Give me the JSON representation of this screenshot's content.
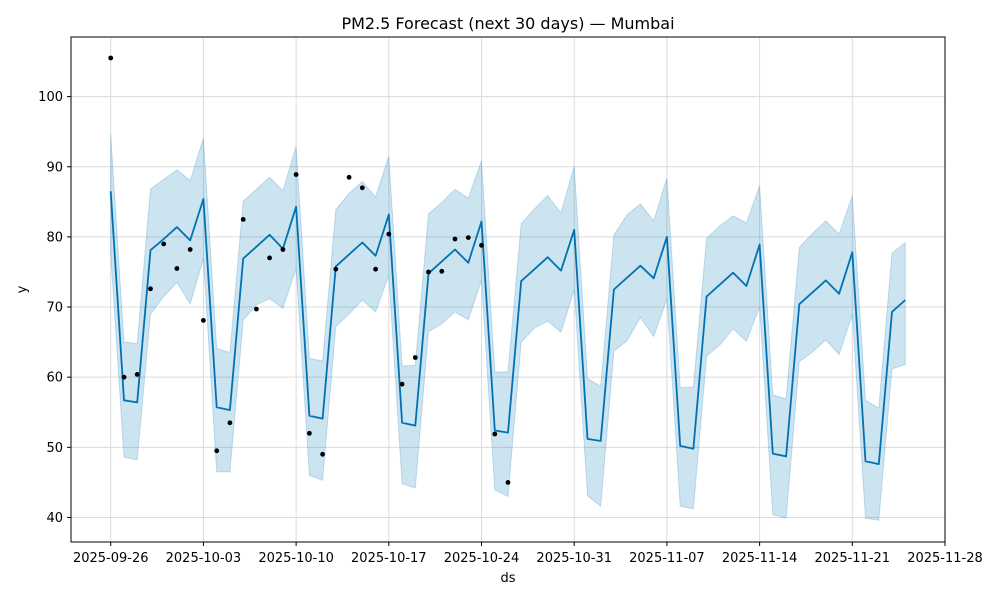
{
  "chart_data": {
    "type": "line",
    "title": "PM2.5 Forecast (next 30 days) — Mumbai",
    "xlabel": "ds",
    "ylabel": "y",
    "x_ticks": [
      "2025-09-26",
      "2025-10-03",
      "2025-10-10",
      "2025-10-17",
      "2025-10-24",
      "2025-10-31",
      "2025-11-07",
      "2025-11-14",
      "2025-11-21",
      "2025-11-28"
    ],
    "y_ticks": [
      40,
      50,
      60,
      70,
      80,
      90,
      100
    ],
    "xlim": [
      "2025-09-23",
      "2025-11-28"
    ],
    "ylim": [
      36.5,
      108.5
    ],
    "grid": true,
    "colors": {
      "forecast": "#0072B2",
      "band": "#0072B2",
      "observed": "#000000"
    },
    "observed": {
      "x": [
        "2025-09-26",
        "2025-09-27",
        "2025-09-28",
        "2025-09-29",
        "2025-09-30",
        "2025-10-01",
        "2025-10-02",
        "2025-10-03",
        "2025-10-04",
        "2025-10-05",
        "2025-10-06",
        "2025-10-07",
        "2025-10-08",
        "2025-10-09",
        "2025-10-10",
        "2025-10-11",
        "2025-10-12",
        "2025-10-13",
        "2025-10-14",
        "2025-10-15",
        "2025-10-16",
        "2025-10-17",
        "2025-10-18",
        "2025-10-19",
        "2025-10-20",
        "2025-10-21",
        "2025-10-22",
        "2025-10-23",
        "2025-10-24",
        "2025-10-25",
        "2025-10-26"
      ],
      "y": [
        105.5,
        60.0,
        60.4,
        72.6,
        79.0,
        75.5,
        78.2,
        68.1,
        49.5,
        53.5,
        82.5,
        69.7,
        77.0,
        78.2,
        88.9,
        52.0,
        49.0,
        75.4,
        88.5,
        87.0,
        75.4,
        80.4,
        59.0,
        62.8,
        75.0,
        75.1,
        79.7,
        79.9,
        78.8,
        51.9,
        45.0
      ]
    },
    "forecast": {
      "x": [
        "2025-09-26",
        "2025-09-27",
        "2025-09-28",
        "2025-09-29",
        "2025-09-30",
        "2025-10-01",
        "2025-10-02",
        "2025-10-03",
        "2025-10-04",
        "2025-10-05",
        "2025-10-06",
        "2025-10-07",
        "2025-10-08",
        "2025-10-09",
        "2025-10-10",
        "2025-10-11",
        "2025-10-12",
        "2025-10-13",
        "2025-10-14",
        "2025-10-15",
        "2025-10-16",
        "2025-10-17",
        "2025-10-18",
        "2025-10-19",
        "2025-10-20",
        "2025-10-21",
        "2025-10-22",
        "2025-10-23",
        "2025-10-24",
        "2025-10-25",
        "2025-10-26",
        "2025-10-27",
        "2025-10-28",
        "2025-10-29",
        "2025-10-30",
        "2025-10-31",
        "2025-11-01",
        "2025-11-02",
        "2025-11-03",
        "2025-11-04",
        "2025-11-05",
        "2025-11-06",
        "2025-11-07",
        "2025-11-08",
        "2025-11-09",
        "2025-11-10",
        "2025-11-11",
        "2025-11-12",
        "2025-11-13",
        "2025-11-14",
        "2025-11-15",
        "2025-11-16",
        "2025-11-17",
        "2025-11-18",
        "2025-11-19",
        "2025-11-20",
        "2025-11-21",
        "2025-11-22",
        "2025-11-23",
        "2025-11-24",
        "2025-11-25"
      ],
      "yhat": [
        86.5,
        56.7,
        56.4,
        78.1,
        79.7,
        81.4,
        79.5,
        85.4,
        55.7,
        55.3,
        76.9,
        78.6,
        80.3,
        78.3,
        84.3,
        54.5,
        54.1,
        75.8,
        77.5,
        79.2,
        77.3,
        83.2,
        53.5,
        53.1,
        74.8,
        76.5,
        78.2,
        76.3,
        82.2,
        52.4,
        52.1,
        73.7,
        75.4,
        77.1,
        75.2,
        81.0,
        51.2,
        50.9,
        72.5,
        74.2,
        75.9,
        74.1,
        80.0,
        50.2,
        49.8,
        71.5,
        73.2,
        74.9,
        73.0,
        78.9,
        49.1,
        48.7,
        70.4,
        72.1,
        73.8,
        71.9,
        77.8,
        48.0,
        47.6,
        69.3,
        71.0
      ],
      "lower": [
        77.5,
        48.6,
        48.2,
        69.0,
        71.5,
        73.5,
        70.4,
        76.9,
        46.5,
        46.5,
        68.1,
        70.3,
        71.2,
        69.8,
        75.5,
        46.0,
        45.3,
        67.2,
        69.0,
        71.0,
        69.3,
        74.5,
        44.8,
        44.2,
        66.5,
        67.6,
        69.3,
        68.2,
        73.8,
        43.9,
        43.0,
        65.0,
        67.0,
        68.0,
        66.4,
        72.5,
        43.1,
        41.6,
        63.7,
        65.2,
        68.5,
        65.8,
        71.1,
        41.6,
        41.2,
        63.0,
        64.6,
        66.9,
        65.1,
        70.0,
        40.4,
        39.9,
        62.2,
        63.6,
        65.3,
        63.2,
        68.9,
        39.9,
        39.6,
        61.2,
        61.8
      ],
      "upper": [
        94.6,
        65.0,
        64.8,
        86.8,
        88.2,
        89.6,
        88.0,
        94.1,
        64.1,
        63.5,
        85.1,
        86.8,
        88.5,
        86.6,
        92.9,
        62.7,
        62.3,
        83.9,
        86.2,
        87.9,
        85.7,
        91.5,
        61.6,
        61.7,
        83.3,
        84.9,
        86.8,
        85.5,
        90.9,
        60.7,
        60.8,
        81.9,
        84.0,
        85.9,
        83.4,
        90.1,
        59.8,
        58.7,
        80.3,
        83.2,
        84.7,
        82.3,
        88.4,
        58.5,
        58.6,
        79.8,
        81.6,
        83.0,
        82.0,
        87.3,
        57.5,
        56.9,
        78.5,
        80.5,
        82.3,
        80.4,
        85.9,
        56.7,
        55.6,
        77.7,
        79.2
      ]
    }
  }
}
